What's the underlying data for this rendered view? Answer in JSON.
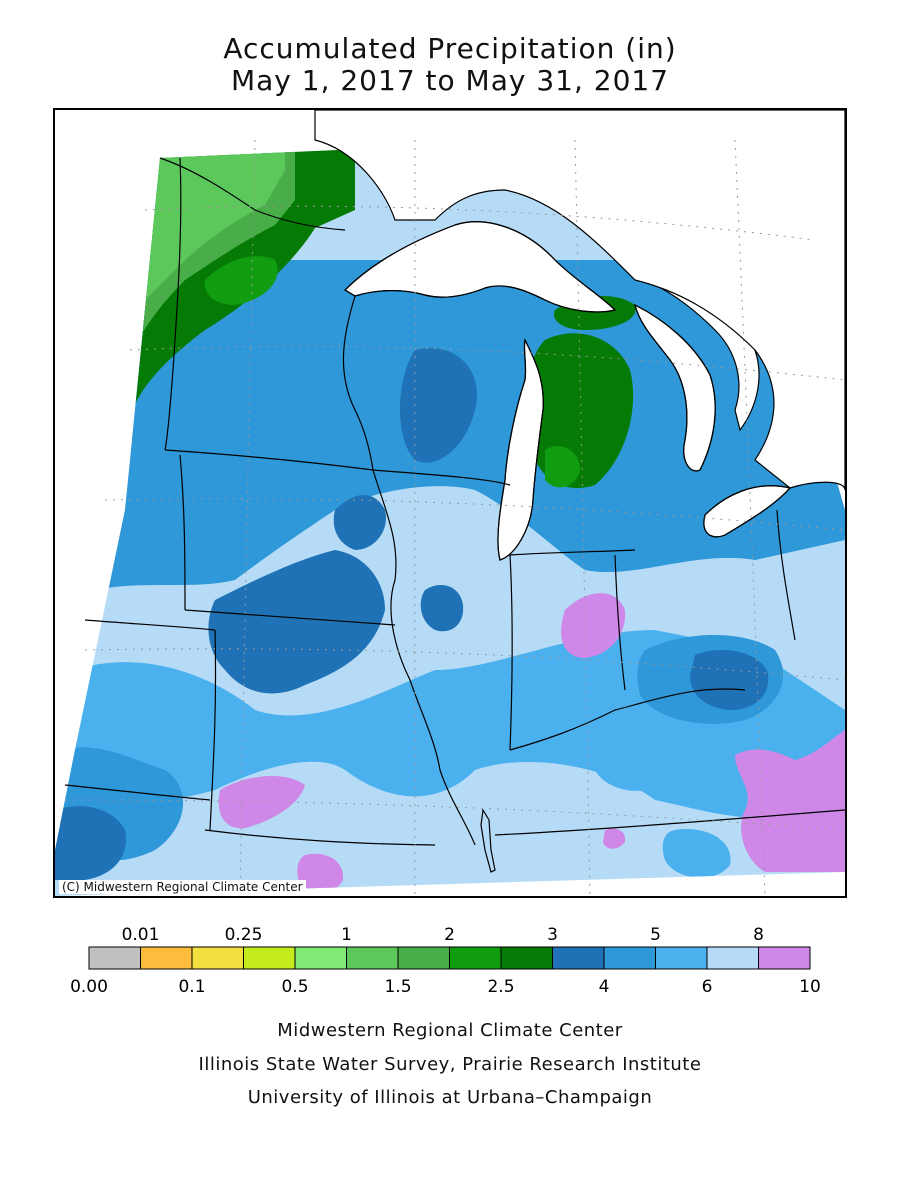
{
  "title": {
    "line1": "Accumulated Precipitation (in)",
    "line2": "May 1, 2017 to May 31, 2017"
  },
  "map": {
    "credit": "(C) Midwestern Regional Climate Center",
    "fill_colors": {
      "green_2": "#5cc85c",
      "green_3": "#49ad49",
      "green_4": "#109e10",
      "green_5": "#057b05",
      "blue_1": "#1e72b5",
      "blue_2": "#2e98d8",
      "blue_3": "#4bb1ee",
      "blue_4": "#b6dbf7",
      "purple": "#cf88e8",
      "lake": "#ffffff",
      "outline": "#000000"
    }
  },
  "legend": {
    "upper_labels": [
      "0.01",
      "0.25",
      "1",
      "2",
      "3",
      "5",
      "8"
    ],
    "lower_labels": [
      "0.00",
      "0.1",
      "0.5",
      "1.5",
      "2.5",
      "4",
      "6",
      "10"
    ],
    "colors": [
      "#c0c0c0",
      "#fcbd3c",
      "#f2e040",
      "#c4ec1c",
      "#82ea74",
      "#5cc85c",
      "#49ad49",
      "#109e10",
      "#057b05",
      "#1e72b5",
      "#2e98d8",
      "#4bb1ee",
      "#b6dbf7",
      "#cf88e8"
    ]
  },
  "footer": {
    "line1": "Midwestern Regional Climate Center",
    "line2": "Illinois State Water Survey, Prairie Research Institute",
    "line3": "University of Illinois at Urbana–Champaign"
  }
}
